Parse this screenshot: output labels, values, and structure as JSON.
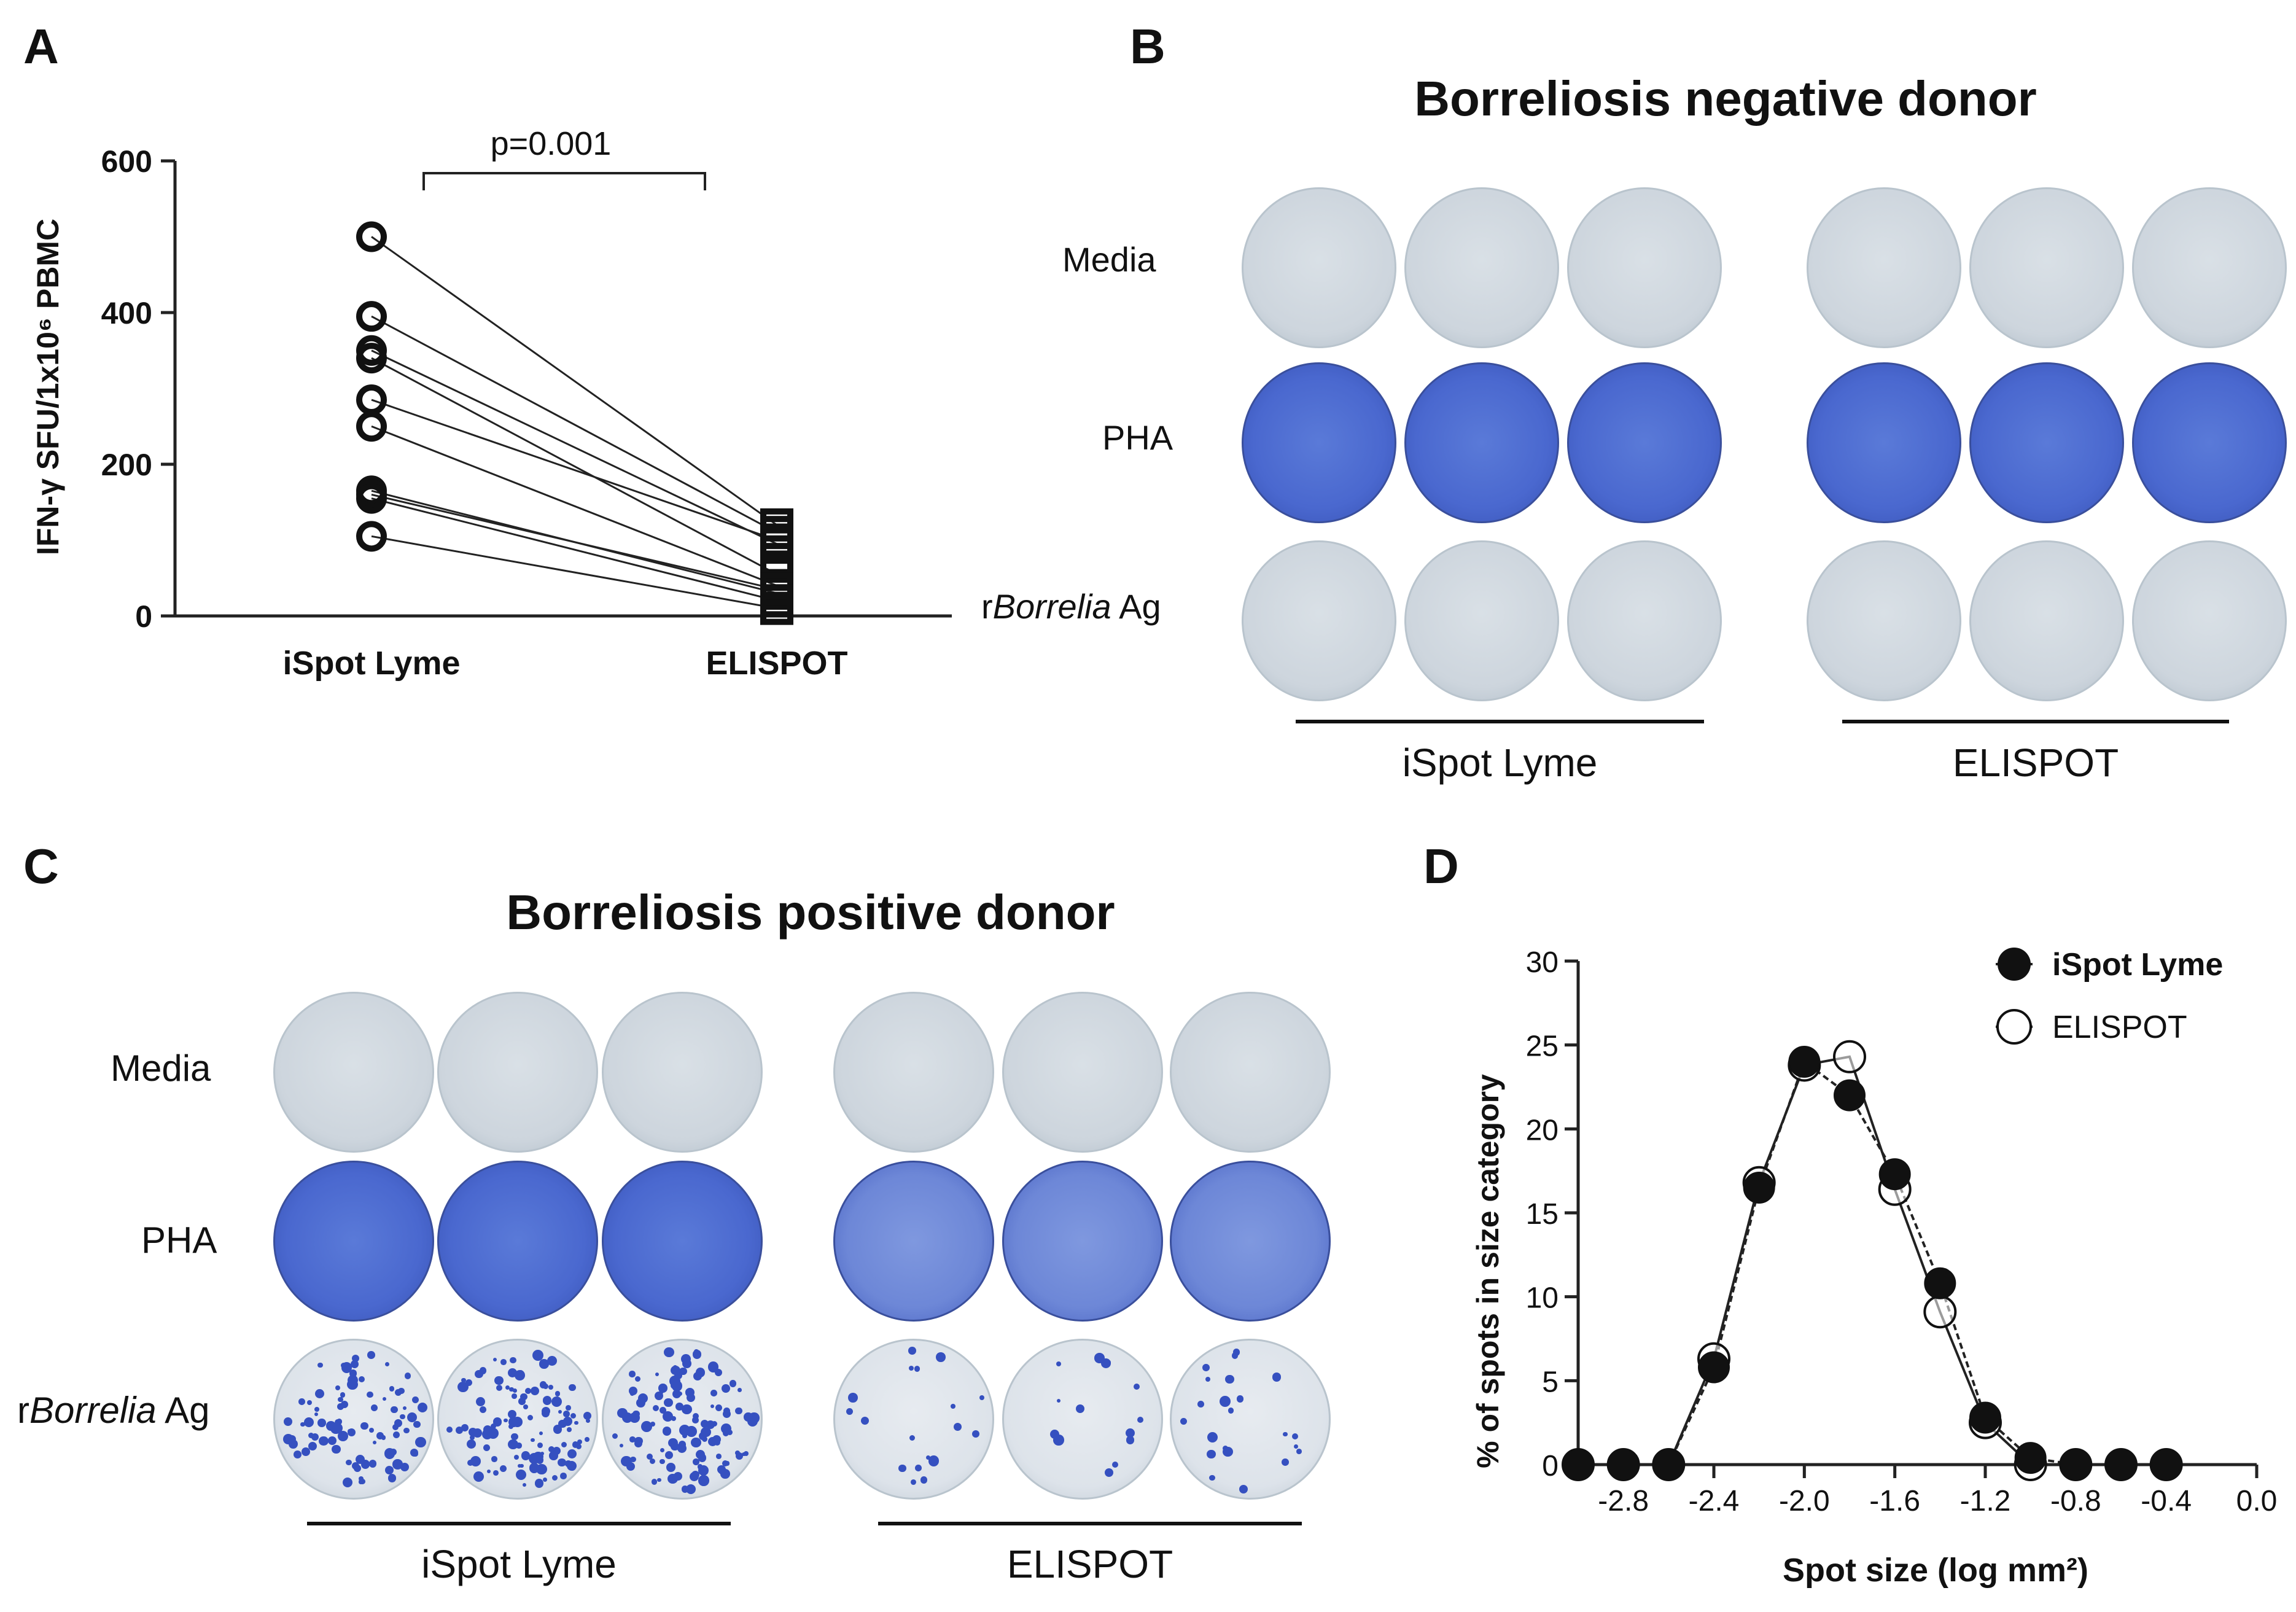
{
  "panel_a": {
    "letter": "A",
    "ylabel": "IFN-γ SFU/1x10⁶ PBMC",
    "pvalue": "p=0.001",
    "ylim": [
      0,
      600
    ],
    "yticks": [
      "0",
      "200",
      "400",
      "600"
    ],
    "xcats": [
      "iSpot Lyme",
      "ELISPOT"
    ]
  },
  "panel_b": {
    "letter": "B",
    "title": "Borreliosis negative donor",
    "rows": {
      "media": "Media",
      "pha": "PHA",
      "ag_prefix": "r",
      "ag_italic": "Borrelia",
      "ag_suffix": " Ag"
    },
    "groups": [
      "iSpot Lyme",
      "ELISPOT"
    ]
  },
  "panel_c": {
    "letter": "C",
    "title": "Borreliosis positive donor",
    "rows": {
      "media": "Media",
      "pha": "PHA",
      "ag_prefix": "r",
      "ag_italic": "Borrelia",
      "ag_suffix": " Ag"
    },
    "groups": [
      "iSpot Lyme",
      "ELISPOT"
    ]
  },
  "panel_d": {
    "letter": "D",
    "ylabel": "% of spots in size category",
    "xlabel": "Spot size (log mm²)",
    "yticks": [
      "0",
      "5",
      "10",
      "15",
      "20",
      "25",
      "30"
    ],
    "xticks": [
      "-2.8",
      "-2.4",
      "-2.0",
      "-1.6",
      "-1.2",
      "-0.8",
      "-0.4",
      "0.0"
    ],
    "legend": [
      "iSpot Lyme",
      "ELISPOT"
    ]
  },
  "chart_data": [
    {
      "type": "scatter",
      "title": "",
      "ylabel": "IFN-γ SFU/1x10⁶ PBMC",
      "categories": [
        "iSpot Lyme",
        "ELISPOT"
      ],
      "ylim": [
        0,
        600
      ],
      "paired": [
        [
          500,
          120
        ],
        [
          395,
          110
        ],
        [
          350,
          95
        ],
        [
          340,
          55
        ],
        [
          285,
          100
        ],
        [
          250,
          40
        ],
        [
          165,
          30
        ],
        [
          160,
          35
        ],
        [
          155,
          20
        ],
        [
          105,
          10
        ]
      ],
      "annotation": "p=0.001"
    },
    {
      "type": "line",
      "xlabel": "Spot size (log mm²)",
      "ylabel": "% of spots in size category",
      "xlim": [
        -3.0,
        0.0
      ],
      "ylim": [
        0,
        30
      ],
      "series": [
        {
          "name": "iSpot Lyme",
          "x": [
            -3.0,
            -2.8,
            -2.6,
            -2.4,
            -2.2,
            -2.0,
            -1.8,
            -1.6,
            -1.4,
            -1.2,
            -1.0,
            -0.8,
            -0.6,
            -0.4
          ],
          "values": [
            0,
            0,
            0,
            5.8,
            16.5,
            24.0,
            22.0,
            17.3,
            10.8,
            2.8,
            0.4,
            0,
            0,
            0
          ]
        },
        {
          "name": "ELISPOT",
          "x": [
            -3.0,
            -2.8,
            -2.6,
            -2.4,
            -2.2,
            -2.0,
            -1.8,
            -1.6,
            -1.4,
            -1.2,
            -1.0,
            -0.8,
            -0.6,
            -0.4
          ],
          "values": [
            0,
            0,
            0,
            6.3,
            16.8,
            23.8,
            24.3,
            16.4,
            9.1,
            2.5,
            0,
            0,
            0,
            0
          ]
        }
      ]
    }
  ]
}
